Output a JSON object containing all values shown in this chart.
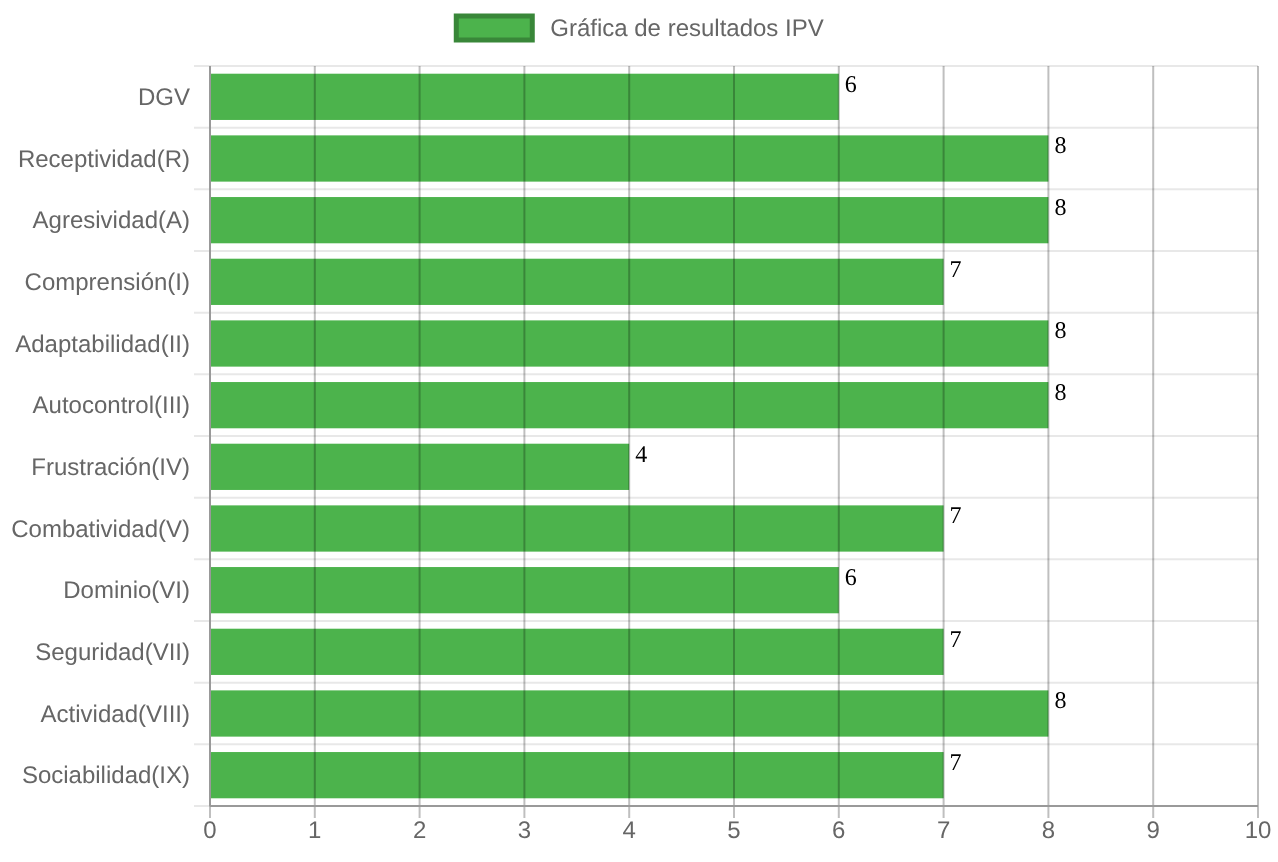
{
  "chart_data": {
    "type": "bar",
    "orientation": "horizontal",
    "categories": [
      "DGV",
      "Receptividad(R)",
      "Agresividad(A)",
      "Comprensión(I)",
      "Adaptabilidad(II)",
      "Autocontrol(III)",
      "Frustración(IV)",
      "Combatividad(V)",
      "Dominio(VI)",
      "Seguridad(VII)",
      "Actividad(VIII)",
      "Sociabilidad(IX)"
    ],
    "series": [
      {
        "name": "Gráfica de resultados IPV",
        "color": "#4cb34c",
        "values": [
          6,
          8,
          8,
          7,
          8,
          8,
          4,
          7,
          6,
          7,
          8,
          7
        ]
      }
    ],
    "xlim": [
      0,
      10
    ],
    "xticks": [
      0,
      1,
      2,
      3,
      4,
      5,
      6,
      7,
      8,
      9,
      10
    ],
    "grid": true,
    "legend": "top",
    "data_labels": true
  }
}
